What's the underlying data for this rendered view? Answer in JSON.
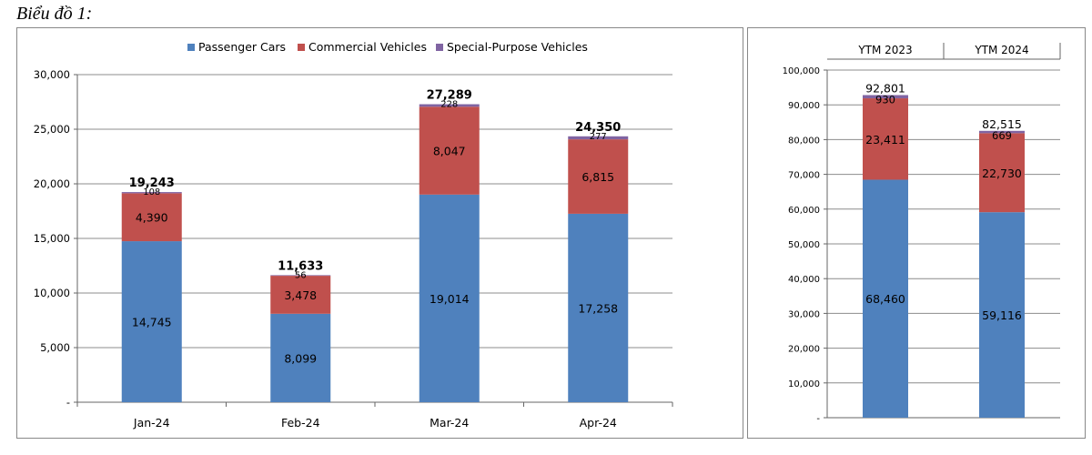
{
  "caption": "Biểu đồ 1:",
  "colors": {
    "passenger": "#4F81BD",
    "commercial": "#C0504D",
    "special": "#8064A2",
    "grid": "#8C8C8C",
    "axis": "#666666"
  },
  "chart_data": [
    {
      "type": "bar",
      "stacked": true,
      "categories": [
        "Jan-24",
        "Feb-24",
        "Mar-24",
        "Apr-24"
      ],
      "series": [
        {
          "name": "Passenger Cars",
          "values": [
            14745,
            8099,
            19014,
            17258
          ],
          "labels": [
            "14,745",
            "8,099",
            "19,014",
            "17,258"
          ]
        },
        {
          "name": "Commercial Vehicles",
          "values": [
            4390,
            3478,
            8047,
            6815
          ],
          "labels": [
            "4,390",
            "3,478",
            "8,047",
            "6,815"
          ]
        },
        {
          "name": "Special-Purpose Vehicles",
          "values": [
            108,
            56,
            228,
            277
          ],
          "labels": [
            "108",
            "56",
            "228",
            "277"
          ]
        }
      ],
      "totals": [
        "19,243",
        "11,633",
        "27,289",
        "24,350"
      ],
      "yticks": [
        "-",
        "5,000",
        "10,000",
        "15,000",
        "20,000",
        "25,000",
        "30,000"
      ],
      "ylim": [
        0,
        30000
      ],
      "grid": true,
      "legend": "top-center"
    },
    {
      "type": "bar",
      "stacked": true,
      "categories": [
        "YTM 2023",
        "YTM 2024"
      ],
      "series": [
        {
          "name": "Passenger Cars",
          "values": [
            68460,
            59116
          ],
          "labels": [
            "68,460",
            "59,116"
          ]
        },
        {
          "name": "Commercial Vehicles",
          "values": [
            23411,
            22730
          ],
          "labels": [
            "23,411",
            "22,730"
          ]
        },
        {
          "name": "Special-Purpose Vehicles",
          "values": [
            930,
            669
          ],
          "labels": [
            "930",
            "669"
          ]
        }
      ],
      "totals": [
        "92,801",
        "82,515"
      ],
      "yticks": [
        "-",
        "10,000",
        "20,000",
        "30,000",
        "40,000",
        "50,000",
        "60,000",
        "70,000",
        "80,000",
        "90,000",
        "100,000"
      ],
      "ylim": [
        0,
        100000
      ],
      "grid": true,
      "category_axis": "top"
    }
  ]
}
